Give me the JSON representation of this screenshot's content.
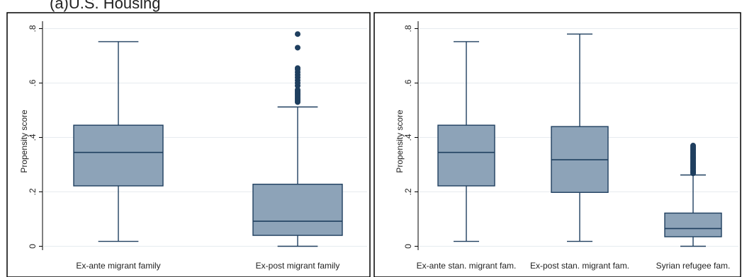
{
  "caption": "(a)U.S. Housing",
  "chart_data": [
    {
      "type": "box",
      "ylabel": "Propensity score",
      "yticks": [
        0,
        0.2,
        0.4,
        0.6,
        0.8
      ],
      "ytick_labels": [
        "0",
        ".2",
        ".4",
        ".6",
        ".8"
      ],
      "ylim": [
        -0.01,
        0.82
      ],
      "grid": true,
      "box_color": "#8da3b8",
      "line_color": "#1f3f5f",
      "outlier_color": "#1f3f5f",
      "categories": [
        "Ex-ante migrant family",
        "Ex-post migrant family"
      ],
      "boxes": [
        {
          "label": "Ex-ante migrant family",
          "whisker_low": 0.018,
          "q1": 0.222,
          "median": 0.345,
          "q3": 0.445,
          "whisker_high": 0.752,
          "outliers": []
        },
        {
          "label": "Ex-post migrant family",
          "whisker_low": 0.0,
          "q1": 0.04,
          "median": 0.092,
          "q3": 0.228,
          "whisker_high": 0.512,
          "outliers": [
            0.53,
            0.535,
            0.54,
            0.545,
            0.55,
            0.555,
            0.56,
            0.565,
            0.57,
            0.575,
            0.59,
            0.6,
            0.61,
            0.62,
            0.63,
            0.64,
            0.65,
            0.655,
            0.73,
            0.78
          ]
        }
      ]
    },
    {
      "type": "box",
      "ylabel": "Propensity score",
      "yticks": [
        0,
        0.2,
        0.4,
        0.6,
        0.8
      ],
      "ytick_labels": [
        "0",
        ".2",
        ".4",
        ".6",
        ".8"
      ],
      "ylim": [
        -0.01,
        0.82
      ],
      "grid": true,
      "box_color": "#8da3b8",
      "line_color": "#1f3f5f",
      "outlier_color": "#1f3f5f",
      "categories": [
        "Ex-ante stan. migrant fam.",
        "Ex-post stan. migrant fam.",
        "Syrian refugee fam."
      ],
      "boxes": [
        {
          "label": "Ex-ante stan. migrant fam.",
          "whisker_low": 0.018,
          "q1": 0.222,
          "median": 0.345,
          "q3": 0.445,
          "whisker_high": 0.752,
          "outliers": []
        },
        {
          "label": "Ex-post stan. migrant fam.",
          "whisker_low": 0.018,
          "q1": 0.198,
          "median": 0.318,
          "q3": 0.44,
          "whisker_high": 0.78,
          "outliers": []
        },
        {
          "label": "Syrian refugee fam.",
          "whisker_low": 0.0,
          "q1": 0.035,
          "median": 0.065,
          "q3": 0.122,
          "whisker_high": 0.262,
          "outliers": [
            0.268,
            0.272,
            0.276,
            0.28,
            0.285,
            0.29,
            0.295,
            0.3,
            0.305,
            0.31,
            0.315,
            0.32,
            0.325,
            0.33,
            0.335,
            0.34,
            0.345,
            0.35,
            0.355,
            0.36,
            0.365,
            0.37
          ]
        }
      ]
    }
  ]
}
